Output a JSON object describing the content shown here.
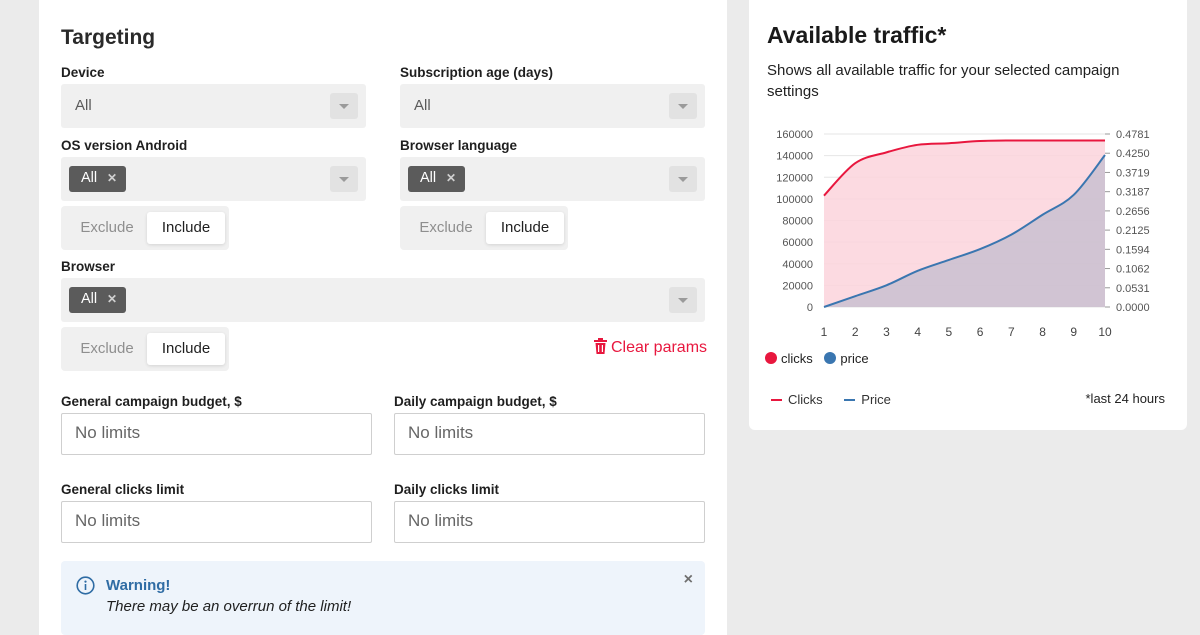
{
  "targeting": {
    "title": "Targeting",
    "device": {
      "label": "Device",
      "value": "All"
    },
    "subscription_age": {
      "label": "Subscription age (days)",
      "value": "All"
    },
    "os_version": {
      "label": "OS version Android",
      "chip": "All",
      "exclude": "Exclude",
      "include": "Include"
    },
    "browser_language": {
      "label": "Browser language",
      "chip": "All",
      "exclude": "Exclude",
      "include": "Include"
    },
    "browser": {
      "label": "Browser",
      "chip": "All",
      "exclude": "Exclude",
      "include": "Include"
    },
    "clear_params": "Clear params",
    "general_budget": {
      "label": "General campaign budget, $",
      "placeholder": "No limits"
    },
    "daily_budget": {
      "label": "Daily campaign budget, $",
      "placeholder": "No limits"
    },
    "general_clicks": {
      "label": "General clicks limit",
      "placeholder": "No limits"
    },
    "daily_clicks": {
      "label": "Daily clicks limit",
      "placeholder": "No limits"
    },
    "warning": {
      "title": "Warning!",
      "text": "There may be an overrun of the limit!",
      "close": "×"
    }
  },
  "traffic": {
    "title": "Available traffic*",
    "subtitle": "Shows all available traffic for your selected campaign settings",
    "legend_dots": [
      {
        "label": "clicks",
        "color": "#e8173e"
      },
      {
        "label": "price",
        "color": "#3a76b0"
      }
    ],
    "legend_lines": [
      {
        "label": "Clicks",
        "color": "#e8173e"
      },
      {
        "label": "Price",
        "color": "#3a76b0"
      }
    ],
    "footnote": "*last 24 hours"
  },
  "chart_data": {
    "type": "area",
    "x": [
      1,
      2,
      3,
      4,
      5,
      6,
      7,
      8,
      9,
      10
    ],
    "series": [
      {
        "name": "clicks",
        "axis": "left",
        "color": "#e8173e",
        "values": [
          103000,
          133000,
          143000,
          150000,
          151500,
          153500,
          154000,
          154000,
          154000,
          154000
        ]
      },
      {
        "name": "price",
        "axis": "right",
        "color": "#3a76b0",
        "values": [
          0.0,
          0.03,
          0.06,
          0.1,
          0.13,
          0.16,
          0.2,
          0.255,
          0.31,
          0.42
        ]
      }
    ],
    "y_left_ticks": [
      "0",
      "20000",
      "40000",
      "60000",
      "80000",
      "100000",
      "120000",
      "140000",
      "160000"
    ],
    "y_right_ticks": [
      "0.0000",
      "0.0531",
      "0.1062",
      "0.1594",
      "0.2125",
      "0.2656",
      "0.3187",
      "0.3719",
      "0.4250",
      "0.4781"
    ],
    "ylim_left": [
      0,
      160000
    ],
    "ylim_right": [
      0,
      0.4781
    ],
    "x_ticks": [
      "1",
      "2",
      "3",
      "4",
      "5",
      "6",
      "7",
      "8",
      "9",
      "10"
    ],
    "colors": {
      "clicks": "#e8173e",
      "price": "#3a76b0",
      "clicks_fill": "#fbd3dc",
      "price_fill": "#c9bfd0"
    }
  }
}
